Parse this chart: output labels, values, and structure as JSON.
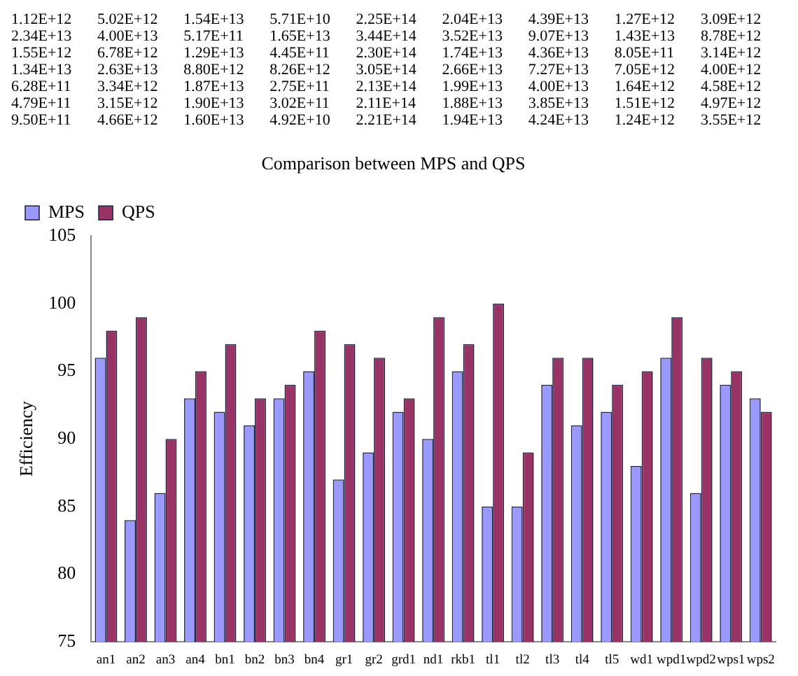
{
  "chart_data": {
    "type": "bar",
    "title": "Comparison between MPS and QPS",
    "ylabel": "Efficiency",
    "annotations": [
      "1.12E+12 5.02E+12 1.54E+13 5.71E+10 2.25E+14 2.04E+13 4.39E+13 1.27E+12 3.09E+12",
      "2.34E+13 4.00E+13 5.17E+11 1.65E+13 3.44E+14 3.52E+13 9.07E+13 1.43E+13 8.78E+12",
      "1.55E+12 6.78E+12 1.29E+13 4.45E+11 2.30E+14 1.74E+13 4.36E+13 8.05E+11 3.14E+12",
      "1.34E+13 2.63E+13 8.80E+12 8.26E+12 3.05E+14 2.66E+13 7.27E+13 7.05E+12 4.00E+12",
      "6.28E+11 3.34E+12 1.87E+13 2.75E+11 2.13E+14 1.99E+13 4.00E+13 1.64E+12 4.58E+12",
      "4.79E+11 3.15E+12 1.90E+13 3.02E+11 2.11E+14 1.88E+13 3.85E+13 1.51E+12 4.97E+12",
      "9.50E+11 4.66E+12 1.60E+13 4.92E+10 2.21E+14 1.94E+13 4.24E+13 1.24E+12 3.55E+12"
    ],
    "categories": [
      "an1",
      "an2",
      "an3",
      "an4",
      "bn1",
      "bn2",
      "bn3",
      "bn4",
      "gr1",
      "gr2",
      "grd1",
      "nd1",
      "rkb1",
      "tl1",
      "tl2",
      "tl3",
      "tl4",
      "tl5",
      "wd1",
      "wpd1",
      "wpd2",
      "wps1",
      "wps2"
    ],
    "series": [
      {
        "name": "MPS",
        "color": "#9999ff",
        "values": [
          96,
          84,
          86,
          93,
          92,
          91,
          93,
          95,
          87,
          89,
          92,
          90,
          95,
          85,
          85,
          94,
          91,
          92,
          88,
          96,
          86,
          94,
          93
        ]
      },
      {
        "name": "QPS",
        "color": "#993366",
        "values": [
          98,
          99,
          90,
          95,
          97,
          93,
          94,
          98,
          97,
          96,
          93,
          99,
          97,
          100,
          89,
          96,
          96,
          94,
          95,
          99,
          96,
          95,
          92
        ]
      }
    ],
    "ylim": [
      75,
      105
    ],
    "yticks": [
      75,
      80,
      85,
      90,
      95,
      100,
      105
    ],
    "grid": false,
    "legend": "top left"
  }
}
